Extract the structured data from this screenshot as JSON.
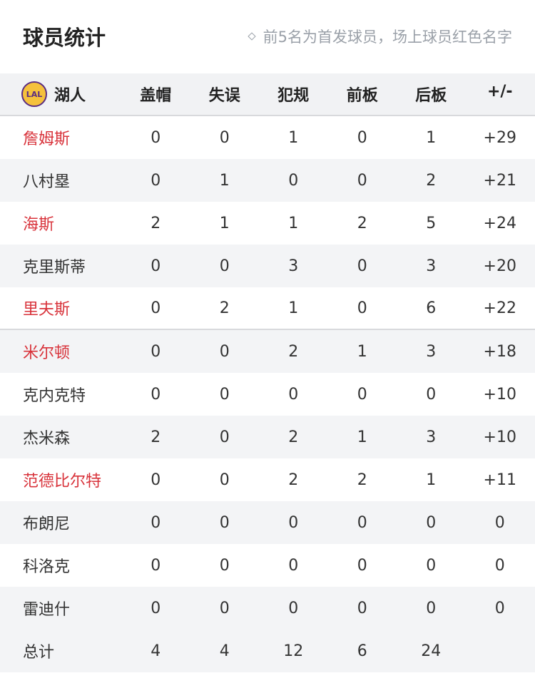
{
  "header": {
    "title": "球员统计",
    "note": "前5名为首发球员，场上球员红色名字"
  },
  "team": {
    "name": "湖人",
    "logo_text": "LAL"
  },
  "columns": [
    "盖帽",
    "失误",
    "犯规",
    "前板",
    "后板",
    "+/-"
  ],
  "players": [
    {
      "name": "詹姆斯",
      "on_court": true,
      "stats": [
        "0",
        "0",
        "1",
        "0",
        "1",
        "+29"
      ]
    },
    {
      "name": "八村塁",
      "on_court": false,
      "stats": [
        "0",
        "1",
        "0",
        "0",
        "2",
        "+21"
      ]
    },
    {
      "name": "海斯",
      "on_court": true,
      "stats": [
        "2",
        "1",
        "1",
        "2",
        "5",
        "+24"
      ]
    },
    {
      "name": "克里斯蒂",
      "on_court": false,
      "stats": [
        "0",
        "0",
        "3",
        "0",
        "3",
        "+20"
      ]
    },
    {
      "name": "里夫斯",
      "on_court": true,
      "stats": [
        "0",
        "2",
        "1",
        "0",
        "6",
        "+22"
      ]
    },
    {
      "name": "米尔顿",
      "on_court": true,
      "stats": [
        "0",
        "0",
        "2",
        "1",
        "3",
        "+18"
      ]
    },
    {
      "name": "克内克特",
      "on_court": false,
      "stats": [
        "0",
        "0",
        "0",
        "0",
        "0",
        "+10"
      ]
    },
    {
      "name": "杰米森",
      "on_court": false,
      "stats": [
        "2",
        "0",
        "2",
        "1",
        "3",
        "+10"
      ]
    },
    {
      "name": "范德比尔特",
      "on_court": true,
      "stats": [
        "0",
        "0",
        "2",
        "2",
        "1",
        "+11"
      ]
    },
    {
      "name": "布朗尼",
      "on_court": false,
      "stats": [
        "0",
        "0",
        "0",
        "0",
        "0",
        "0"
      ]
    },
    {
      "name": "科洛克",
      "on_court": false,
      "stats": [
        "0",
        "0",
        "0",
        "0",
        "0",
        "0"
      ]
    },
    {
      "name": "雷迪什",
      "on_court": false,
      "stats": [
        "0",
        "0",
        "0",
        "0",
        "0",
        "0"
      ]
    }
  ],
  "totals": {
    "label": "总计",
    "stats": [
      "4",
      "4",
      "12",
      "6",
      "24",
      ""
    ]
  },
  "colors": {
    "on_court": "#d8323a",
    "alt_row": "#f3f4f6"
  }
}
